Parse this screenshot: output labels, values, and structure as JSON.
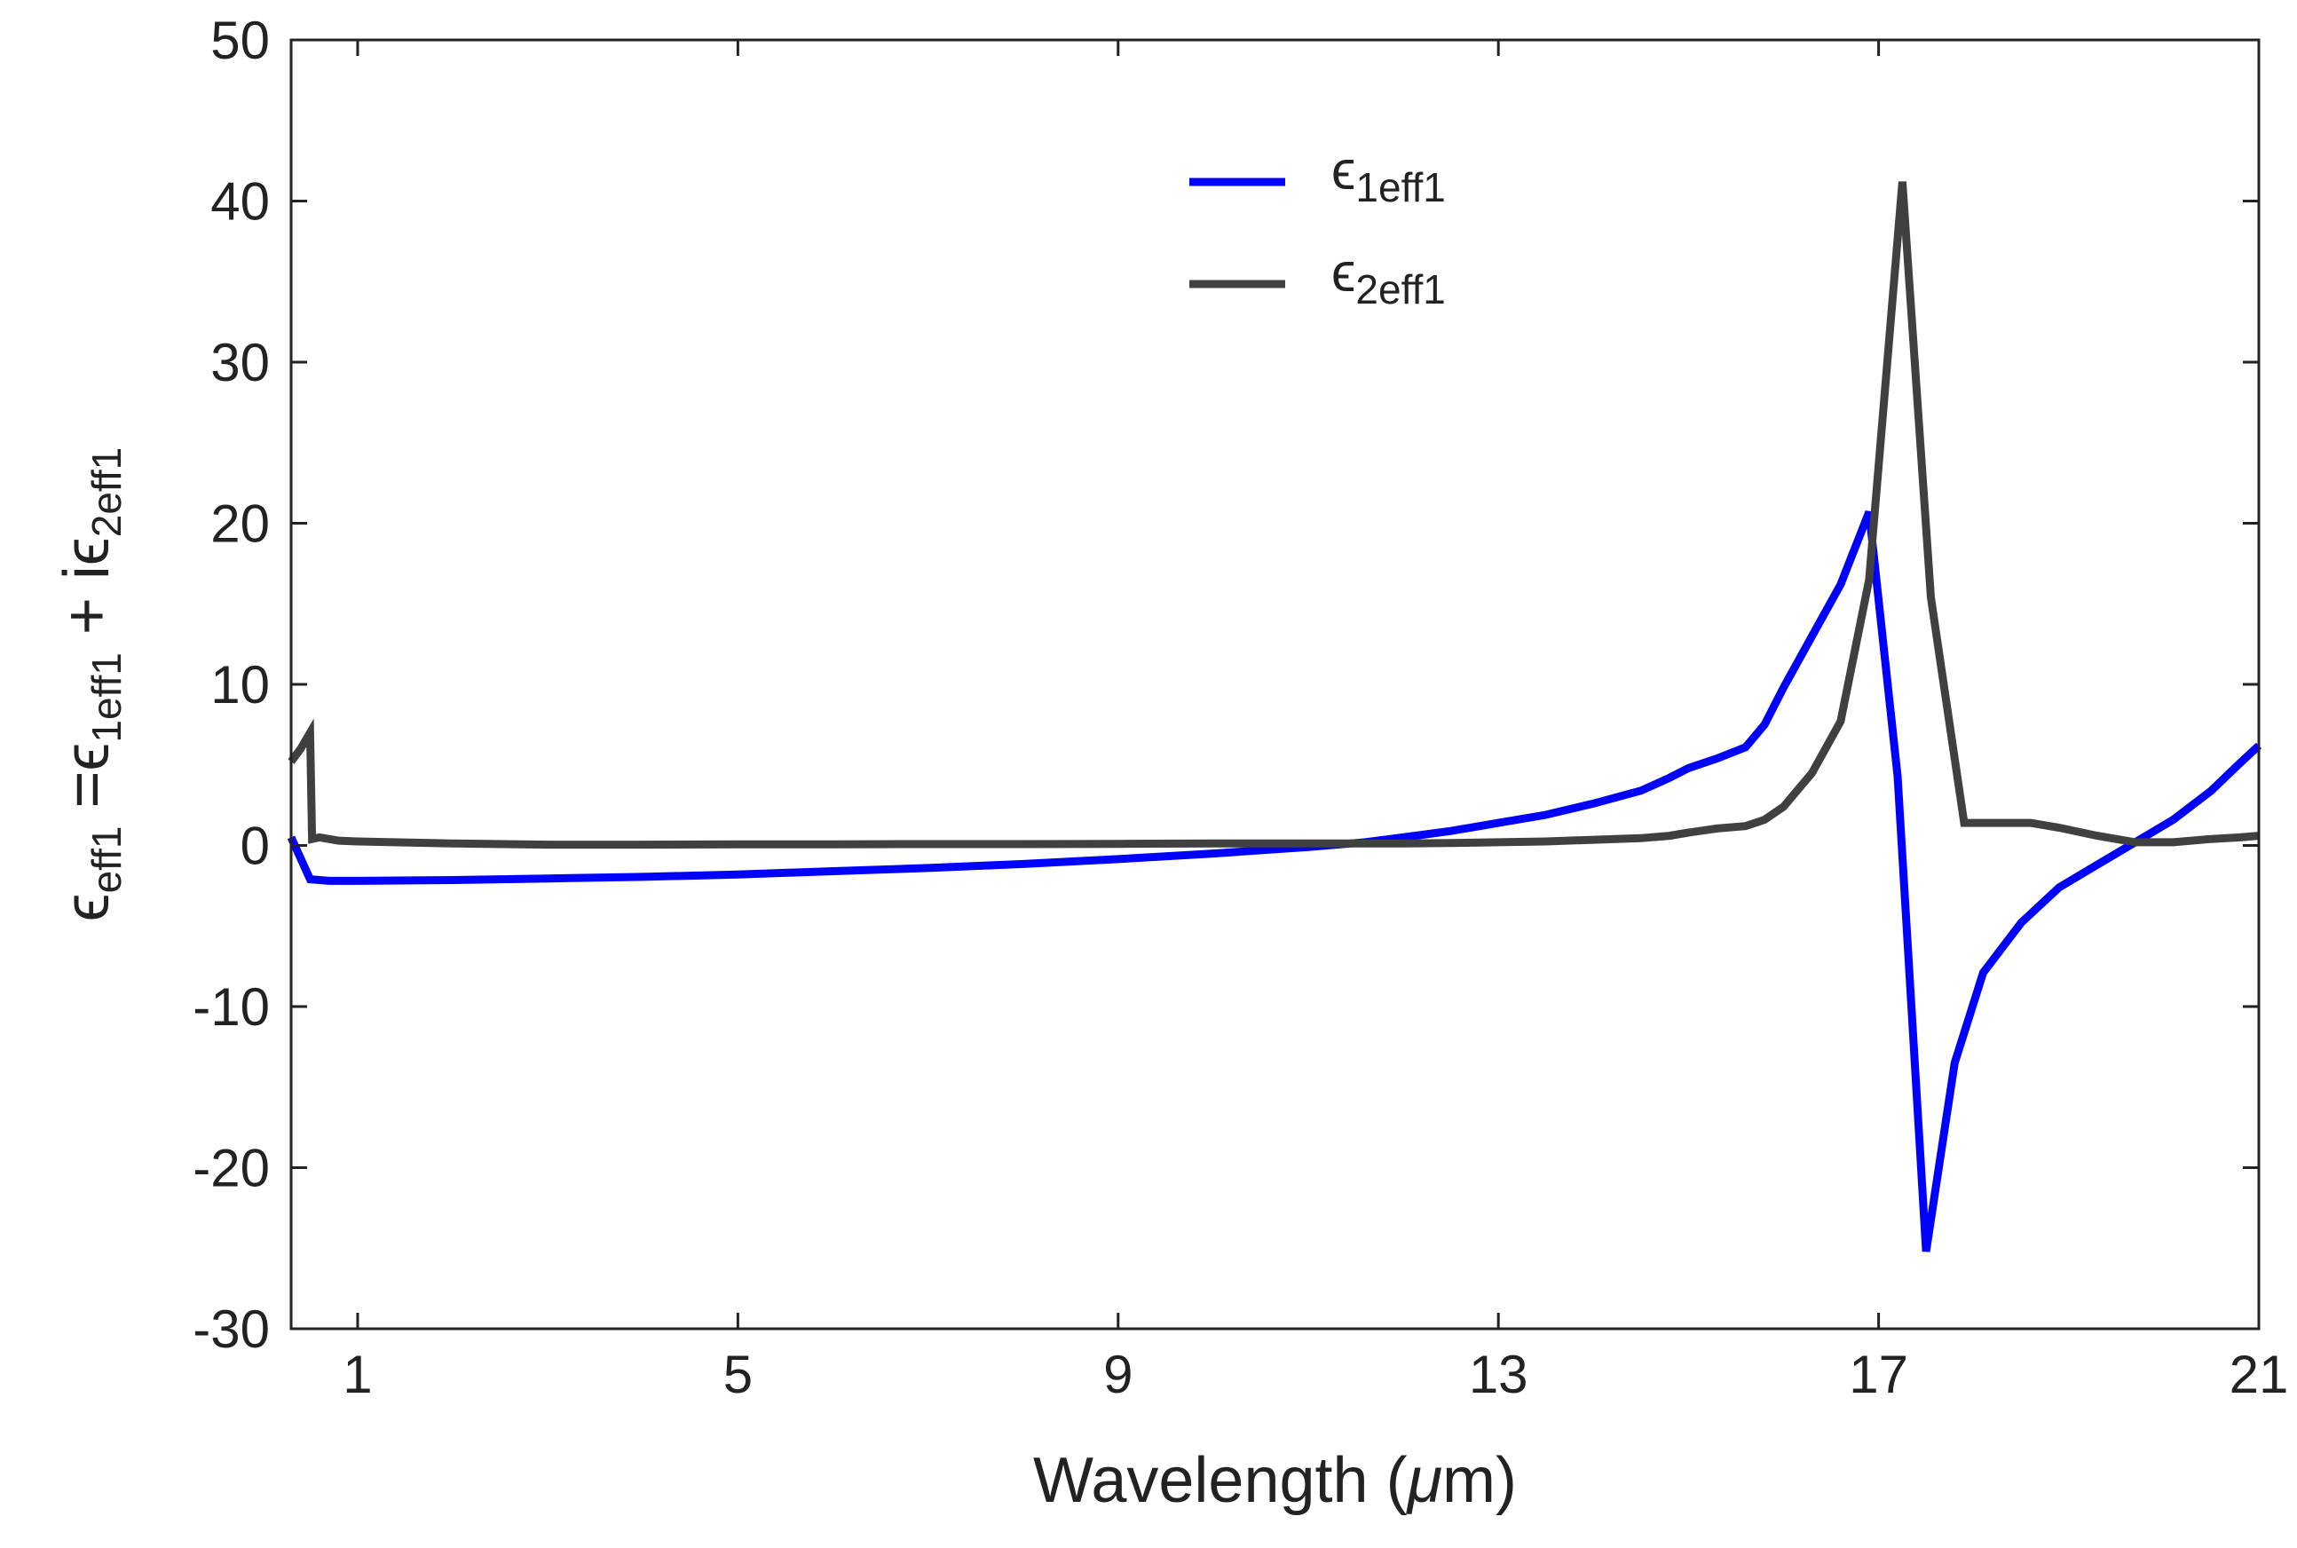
{
  "chart_data": {
    "type": "line",
    "title": "",
    "xlabel": "Wavelength (μm)",
    "xlabel_parts": {
      "prefix": "Wavelength (",
      "greek": "μ",
      "suffix": "m)"
    },
    "ylabel_parts": {
      "lhs_symbol": "ϵ",
      "lhs_sub": "eff1",
      "eq": " =",
      "t1_symbol": "ϵ",
      "t1_sub": "1eff1",
      "plus": " + i",
      "t2_symbol": "ϵ",
      "t2_sub": "2eff1"
    },
    "xlim": [
      0.3,
      21
    ],
    "ylim": [
      -30,
      50
    ],
    "xticks": [
      1,
      5,
      9,
      13,
      17,
      21
    ],
    "yticks": [
      -30,
      -20,
      -10,
      0,
      10,
      20,
      30,
      40,
      50
    ],
    "grid": false,
    "legend_position": "top-center",
    "series": [
      {
        "name": "ϵ1eff1",
        "symbol": "ϵ",
        "subscript": "1eff1",
        "color": "#0000ff",
        "x": [
          0.3,
          0.5,
          0.7,
          1,
          2,
          3,
          4,
          5,
          6,
          7,
          8,
          9,
          10,
          11,
          11.6,
          12,
          12.5,
          13,
          13.5,
          14,
          14.5,
          14.8,
          15,
          15.3,
          15.6,
          15.8,
          16,
          16.3,
          16.6,
          16.9,
          17.2,
          17.5,
          17.8,
          18.1,
          18.5,
          18.9,
          19.3,
          19.7,
          20.1,
          20.5,
          20.8,
          21
        ],
        "y": [
          0.5,
          -2.1,
          -2.2,
          -2.2,
          -2.15,
          -2.05,
          -1.95,
          -1.8,
          -1.6,
          -1.4,
          -1.15,
          -0.85,
          -0.5,
          -0.1,
          0.2,
          0.5,
          0.9,
          1.4,
          1.9,
          2.6,
          3.4,
          4.2,
          4.8,
          5.4,
          6.1,
          7.5,
          9.8,
          13,
          16.2,
          20.7,
          4.3,
          -25.2,
          -13.5,
          -7.9,
          -4.8,
          -2.6,
          -1.2,
          0.2,
          1.6,
          3.4,
          5.1,
          6.2
        ]
      },
      {
        "name": "ϵ2eff1",
        "symbol": "ϵ",
        "subscript": "2eff1",
        "color": "#404040",
        "x": [
          0.3,
          0.4,
          0.5,
          0.52,
          0.6,
          0.8,
          1,
          2,
          3,
          4,
          5,
          6,
          7,
          8,
          9,
          10,
          11,
          12,
          12.5,
          13,
          13.5,
          14,
          14.5,
          14.8,
          15,
          15.3,
          15.6,
          15.8,
          16,
          16.3,
          16.6,
          16.9,
          17.25,
          17.55,
          17.9,
          18.3,
          18.6,
          18.9,
          19.3,
          19.7,
          20.1,
          20.5,
          20.8,
          21
        ],
        "y": [
          5.2,
          6.0,
          7.0,
          0.4,
          0.5,
          0.3,
          0.25,
          0.12,
          0.05,
          0.05,
          0.07,
          0.07,
          0.08,
          0.08,
          0.1,
          0.12,
          0.12,
          0.12,
          0.15,
          0.2,
          0.25,
          0.35,
          0.45,
          0.6,
          0.8,
          1.05,
          1.2,
          1.6,
          2.4,
          4.5,
          7.7,
          16.5,
          41.2,
          15.4,
          1.4,
          1.4,
          1.4,
          1.1,
          0.6,
          0.2,
          0.2,
          0.4,
          0.5,
          0.6
        ]
      }
    ]
  }
}
